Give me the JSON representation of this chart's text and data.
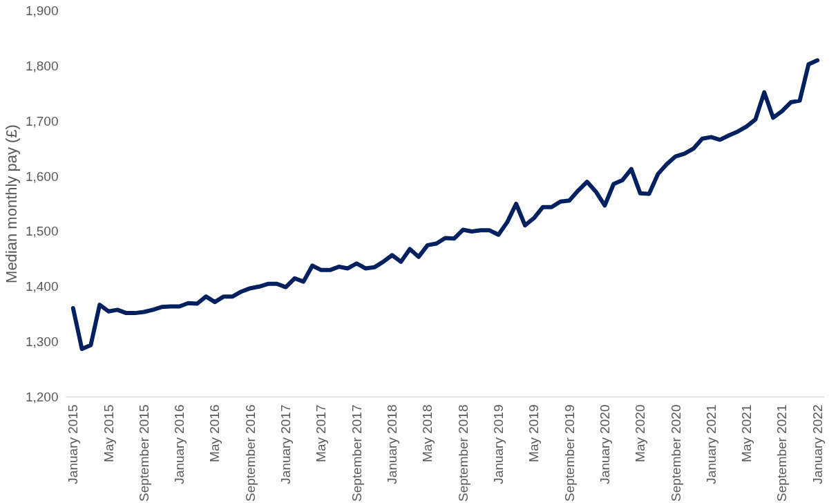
{
  "chart_data": {
    "type": "line",
    "ylabel": "Median monthly pay (£)",
    "categories": [
      "January 2015",
      null,
      null,
      null,
      "May 2015",
      null,
      null,
      null,
      "September 2015",
      null,
      null,
      null,
      "January 2016",
      null,
      null,
      null,
      "May 2016",
      null,
      null,
      null,
      "September 2016",
      null,
      null,
      null,
      "January 2017",
      null,
      null,
      null,
      "May 2017",
      null,
      null,
      null,
      "September 2017",
      null,
      null,
      null,
      "January 2018",
      null,
      null,
      null,
      "May 2018",
      null,
      null,
      null,
      "September 2018",
      null,
      null,
      null,
      "January 2019",
      null,
      null,
      null,
      "May 2019",
      null,
      null,
      null,
      "September 2019",
      null,
      null,
      null,
      "January 2020",
      null,
      null,
      null,
      "May 2020",
      null,
      null,
      null,
      "September 2020",
      null,
      null,
      null,
      "January 2021",
      null,
      null,
      null,
      "May 2021",
      null,
      null,
      null,
      "September 2021",
      null,
      null,
      null,
      "January 2022"
    ],
    "series": [
      {
        "color": "#002060",
        "values": [
          1361,
          1287,
          1294,
          1367,
          1355,
          1358,
          1352,
          1352,
          1354,
          1358,
          1363,
          1364,
          1364,
          1370,
          1369,
          1382,
          1372,
          1382,
          1382,
          1391,
          1397,
          1400,
          1405,
          1405,
          1399,
          1415,
          1409,
          1438,
          1430,
          1430,
          1436,
          1433,
          1442,
          1433,
          1435,
          1445,
          1457,
          1445,
          1468,
          1454,
          1475,
          1478,
          1488,
          1487,
          1503,
          1500,
          1502,
          1502,
          1494,
          1517,
          1550,
          1511,
          1524,
          1544,
          1544,
          1554,
          1556,
          1574,
          1590,
          1572,
          1547,
          1586,
          1593,
          1613,
          1569,
          1568,
          1604,
          1622,
          1636,
          1641,
          1650,
          1668,
          1671,
          1666,
          1674,
          1681,
          1690,
          1703,
          1752,
          1706,
          1718,
          1734,
          1737,
          1803,
          1810
        ]
      }
    ],
    "ylim": [
      1200,
      1900
    ],
    "yticks": [
      {
        "value": 1200,
        "label": "1,200"
      },
      {
        "value": 1300,
        "label": "1,300"
      },
      {
        "value": 1400,
        "label": "1,400"
      },
      {
        "value": 1500,
        "label": "1,500"
      },
      {
        "value": 1600,
        "label": "1,600"
      },
      {
        "value": 1700,
        "label": "1,700"
      },
      {
        "value": 1800,
        "label": "1,800"
      },
      {
        "value": 1900,
        "label": "1,900"
      }
    ],
    "line_style": "solid"
  }
}
